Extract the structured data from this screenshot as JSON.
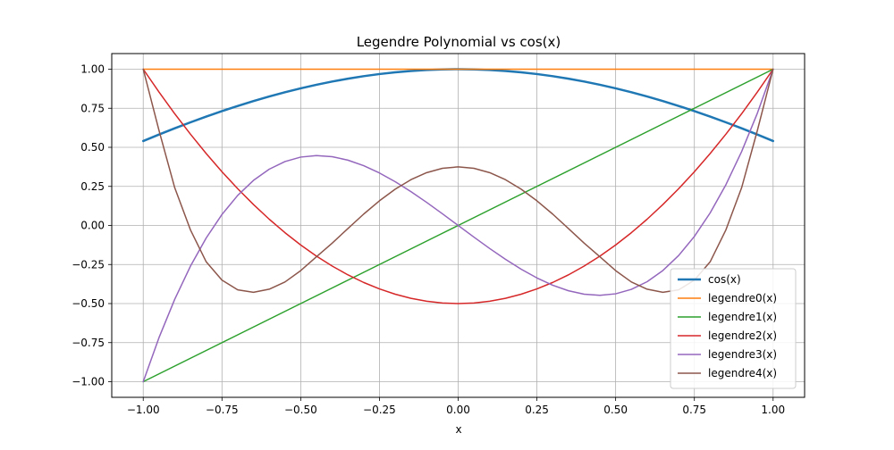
{
  "chart_data": {
    "type": "line",
    "title": "Legendre Polynomial vs cos(x)",
    "xlabel": "x",
    "ylabel": "",
    "xlim": [
      -1.1,
      1.1
    ],
    "ylim": [
      -1.1,
      1.1
    ],
    "grid": true,
    "legend_position": "lower-right",
    "x_ticks": [
      -1.0,
      -0.75,
      -0.5,
      -0.25,
      0.0,
      0.25,
      0.5,
      0.75,
      1.0
    ],
    "x_tick_labels": [
      "−1.00",
      "−0.75",
      "−0.50",
      "−0.25",
      "0.00",
      "0.25",
      "0.50",
      "0.75",
      "1.00"
    ],
    "y_ticks": [
      -1.0,
      -0.75,
      -0.5,
      -0.25,
      0.0,
      0.25,
      0.5,
      0.75,
      1.0
    ],
    "y_tick_labels": [
      "−1.00",
      "−0.75",
      "−0.50",
      "−0.25",
      "0.00",
      "0.25",
      "0.50",
      "0.75",
      "1.00"
    ],
    "x": [
      -1.0,
      -0.95,
      -0.9,
      -0.85,
      -0.8,
      -0.75,
      -0.7,
      -0.65,
      -0.6,
      -0.55,
      -0.5,
      -0.45,
      -0.4,
      -0.35,
      -0.3,
      -0.25,
      -0.2,
      -0.15,
      -0.1,
      -0.05,
      0.0,
      0.05,
      0.1,
      0.15,
      0.2,
      0.25,
      0.3,
      0.35,
      0.4,
      0.45,
      0.5,
      0.55,
      0.6,
      0.65,
      0.7,
      0.75,
      0.8,
      0.85,
      0.9,
      0.95,
      1.0
    ],
    "series": [
      {
        "name": "cos(x)",
        "color": "#1f77b4",
        "width": 2.5,
        "values": [
          0.5403,
          0.5817,
          0.6216,
          0.66,
          0.6967,
          0.7317,
          0.7648,
          0.7961,
          0.8253,
          0.8525,
          0.8776,
          0.9004,
          0.9211,
          0.9394,
          0.9553,
          0.9689,
          0.9801,
          0.9888,
          0.995,
          0.9988,
          1.0,
          0.9988,
          0.995,
          0.9888,
          0.9801,
          0.9689,
          0.9553,
          0.9394,
          0.9211,
          0.9004,
          0.8776,
          0.8525,
          0.8253,
          0.7961,
          0.7648,
          0.7317,
          0.6967,
          0.66,
          0.6216,
          0.5817,
          0.5403
        ]
      },
      {
        "name": "legendre0(x)",
        "color": "#ff7f0e",
        "width": 1.5,
        "values": [
          1,
          1,
          1,
          1,
          1,
          1,
          1,
          1,
          1,
          1,
          1,
          1,
          1,
          1,
          1,
          1,
          1,
          1,
          1,
          1,
          1,
          1,
          1,
          1,
          1,
          1,
          1,
          1,
          1,
          1,
          1,
          1,
          1,
          1,
          1,
          1,
          1,
          1,
          1,
          1,
          1
        ]
      },
      {
        "name": "legendre1(x)",
        "color": "#2ca02c",
        "width": 1.5,
        "values": [
          -1.0,
          -0.95,
          -0.9,
          -0.85,
          -0.8,
          -0.75,
          -0.7,
          -0.65,
          -0.6,
          -0.55,
          -0.5,
          -0.45,
          -0.4,
          -0.35,
          -0.3,
          -0.25,
          -0.2,
          -0.15,
          -0.1,
          -0.05,
          0.0,
          0.05,
          0.1,
          0.15,
          0.2,
          0.25,
          0.3,
          0.35,
          0.4,
          0.45,
          0.5,
          0.55,
          0.6,
          0.65,
          0.7,
          0.75,
          0.8,
          0.85,
          0.9,
          0.95,
          1.0
        ]
      },
      {
        "name": "legendre2(x)",
        "color": "#d62728",
        "width": 1.5,
        "values": [
          1.0,
          0.8538,
          0.715,
          0.5838,
          0.46,
          0.3438,
          0.235,
          0.1338,
          0.04,
          -0.0463,
          -0.125,
          -0.1963,
          -0.26,
          -0.3163,
          -0.365,
          -0.4063,
          -0.44,
          -0.4663,
          -0.485,
          -0.4963,
          -0.5,
          -0.4963,
          -0.485,
          -0.4663,
          -0.44,
          -0.4063,
          -0.365,
          -0.3163,
          -0.26,
          -0.1963,
          -0.125,
          -0.0463,
          0.04,
          0.1338,
          0.235,
          0.3438,
          0.46,
          0.5838,
          0.715,
          0.8538,
          1.0
        ]
      },
      {
        "name": "legendre3(x)",
        "color": "#9467bd",
        "width": 1.5,
        "values": [
          -1.0,
          -0.7184,
          -0.4725,
          -0.2603,
          -0.08,
          0.0703,
          0.1925,
          0.2884,
          0.36,
          0.4091,
          0.4375,
          0.4472,
          0.44,
          0.4178,
          0.3825,
          0.3359,
          0.28,
          0.2166,
          0.1475,
          0.0747,
          0.0,
          -0.0747,
          -0.1475,
          -0.2166,
          -0.28,
          -0.3359,
          -0.3825,
          -0.4178,
          -0.44,
          -0.4472,
          -0.4375,
          -0.4091,
          -0.36,
          -0.2884,
          -0.1925,
          -0.0703,
          0.08,
          0.2603,
          0.4725,
          0.7184,
          1.0
        ]
      },
      {
        "name": "legendre4(x)",
        "color": "#8c564b",
        "width": 1.5,
        "values": [
          1.0,
          0.6079,
          0.2412,
          -0.0289,
          -0.233,
          -0.3501,
          -0.4121,
          -0.428,
          -0.408,
          -0.3617,
          -0.2891,
          -0.2005,
          -0.113,
          -0.0196,
          0.0729,
          0.1577,
          0.232,
          0.293,
          0.3379,
          0.3656,
          0.375,
          0.3656,
          0.3379,
          0.293,
          0.232,
          0.1577,
          0.0729,
          -0.0196,
          -0.113,
          -0.2005,
          -0.2891,
          -0.3617,
          -0.408,
          -0.428,
          -0.4121,
          -0.3501,
          -0.233,
          -0.0289,
          0.2412,
          0.6079,
          1.0
        ]
      }
    ]
  }
}
